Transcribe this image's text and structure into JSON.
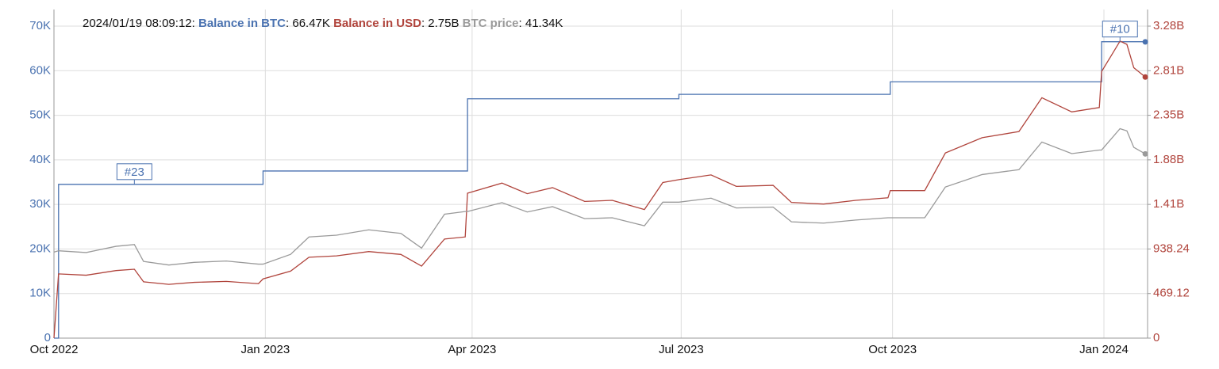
{
  "chart_data": {
    "type": "line",
    "header": {
      "timestamp": "2024/01/19 08:09:12",
      "items": [
        {
          "name": "Balance in BTC",
          "value": "66.47K",
          "color": "#4a72b0"
        },
        {
          "name": "Balance in USD",
          "value": "2.75B",
          "color": "#b0443c"
        },
        {
          "name": "BTC price",
          "value": "41.34K",
          "color": "#9a9a9a"
        }
      ]
    },
    "x": [
      "2022-10-01",
      "2022-10-03",
      "2022-10-15",
      "2022-10-28",
      "2022-11-05",
      "2022-11-09",
      "2022-11-20",
      "2022-12-01",
      "2022-12-15",
      "2022-12-29",
      "2022-12-31",
      "2023-01-12",
      "2023-01-20",
      "2023-02-01",
      "2023-02-15",
      "2023-03-01",
      "2023-03-10",
      "2023-03-20",
      "2023-03-29",
      "2023-03-30",
      "2023-04-14",
      "2023-04-25",
      "2023-05-06",
      "2023-05-20",
      "2023-06-01",
      "2023-06-15",
      "2023-06-23",
      "2023-06-30",
      "2023-07-14",
      "2023-07-25",
      "2023-08-10",
      "2023-08-18",
      "2023-09-01",
      "2023-09-15",
      "2023-09-29",
      "2023-09-30",
      "2023-10-15",
      "2023-10-24",
      "2023-11-09",
      "2023-11-25",
      "2023-12-05",
      "2023-12-18",
      "2023-12-30",
      "2023-12-31",
      "2024-01-08",
      "2024-01-11",
      "2024-01-14",
      "2024-01-19"
    ],
    "series": [
      {
        "name": "Balance in BTC",
        "color": "#4a72b0",
        "axis": "y",
        "step": true,
        "values": [
          0,
          34500,
          34500,
          34500,
          34500,
          34500,
          34500,
          34500,
          34500,
          34500,
          37500,
          37500,
          37500,
          37500,
          37500,
          37500,
          37500,
          37500,
          37500,
          53700,
          53700,
          53700,
          53700,
          53700,
          53700,
          53700,
          53700,
          54700,
          54700,
          54700,
          54700,
          54700,
          54700,
          54700,
          54700,
          57500,
          57500,
          57500,
          57500,
          57500,
          57500,
          57500,
          57500,
          66500,
          66500,
          66500,
          66500,
          66470
        ]
      },
      {
        "name": "Balance in USD",
        "color": "#b0443c",
        "axis": "y2",
        "step": false,
        "values": [
          0,
          676000000,
          662000000,
          711000000,
          725000000,
          593000000,
          566000000,
          587000000,
          597000000,
          573000000,
          623000000,
          705000000,
          851000000,
          866000000,
          911000000,
          881000000,
          758000000,
          1043000000,
          1065000000,
          1525000000,
          1632000000,
          1520000000,
          1584000000,
          1439000000,
          1450000000,
          1353000000,
          1638000000,
          1668000000,
          1718000000,
          1597000000,
          1608000000,
          1428000000,
          1411000000,
          1450000000,
          1477000000,
          1553000000,
          1553000000,
          1949000000,
          2110000000,
          2174000000,
          2530000000,
          2381000000,
          2427000000,
          2806000000,
          3126000000,
          3092000000,
          2846000000,
          2748000000
        ]
      },
      {
        "name": "BTC price",
        "color": "#9a9a9a",
        "axis": "y",
        "step": false,
        "values": [
          19300,
          19600,
          19200,
          20600,
          21000,
          17200,
          16400,
          17000,
          17300,
          16600,
          16600,
          18800,
          22700,
          23100,
          24300,
          23500,
          20200,
          27800,
          28400,
          28400,
          30400,
          28300,
          29500,
          26800,
          27000,
          25200,
          30500,
          30500,
          31400,
          29200,
          29400,
          26100,
          25800,
          26500,
          27000,
          27000,
          27000,
          33900,
          36700,
          37800,
          44000,
          41400,
          42200,
          42200,
          47000,
          46500,
          42800,
          41340
        ]
      }
    ],
    "annotations": [
      {
        "text": "#23",
        "x": "2022-11-05",
        "series": 0
      },
      {
        "text": "#10",
        "x": "2024-01-08",
        "series": 0
      }
    ],
    "xlim": [
      "2022-10-01",
      "2024-01-20"
    ],
    "xticks": [
      {
        "value": "2022-10-01",
        "label": "Oct 2022"
      },
      {
        "value": "2023-01-01",
        "label": "Jan 2023"
      },
      {
        "value": "2023-04-01",
        "label": "Apr 2023"
      },
      {
        "value": "2023-07-01",
        "label": "Jul 2023"
      },
      {
        "value": "2023-10-01",
        "label": "Oct 2023"
      },
      {
        "value": "2024-01-01",
        "label": "Jan 2024"
      }
    ],
    "ylim": [
      0,
      70000
    ],
    "yticks": [
      0,
      {
        "value": 10000,
        "label": "10K"
      },
      {
        "value": 20000,
        "label": "20K"
      },
      {
        "value": 30000,
        "label": "30K"
      },
      {
        "value": 40000,
        "label": "40K"
      },
      {
        "value": 50000,
        "label": "50K"
      },
      {
        "value": 60000,
        "label": "60K"
      },
      {
        "value": 70000,
        "label": "70K"
      }
    ],
    "y2lim": [
      0,
      3283840000
    ],
    "y2ticks": [
      0,
      {
        "value": 469120000,
        "label": "469.12"
      },
      {
        "value": 938240000,
        "label": "938.24"
      },
      {
        "value": 1407360000,
        "label": "1.41B"
      },
      {
        "value": 1876480000,
        "label": "1.88B"
      },
      {
        "value": 2345600000,
        "label": "2.35B"
      },
      {
        "value": 2814720000,
        "label": "2.81B"
      },
      {
        "value": 3283840000,
        "label": "3.28B"
      }
    ],
    "grid": true
  }
}
